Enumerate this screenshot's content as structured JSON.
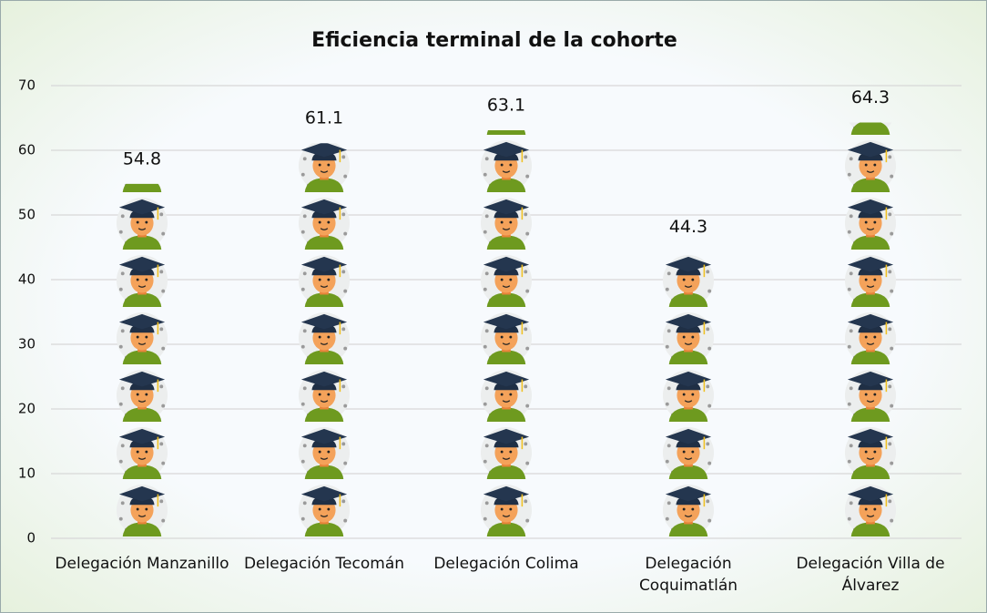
{
  "chart_data": {
    "type": "pictograph",
    "title": "Eficiencia terminal de la cohorte",
    "categories": [
      "Delegación Manzanillo",
      "Delegación Tecomán",
      "Delegación Colima",
      "Delegación Coquimatlán",
      "Delegación Villa de Álvarez"
    ],
    "values": [
      54.8,
      61.1,
      63.1,
      44.3,
      64.3
    ],
    "ylim": [
      0,
      70
    ],
    "yticks": [
      0,
      10,
      20,
      30,
      40,
      50,
      60,
      70
    ],
    "grid": true
  }
}
